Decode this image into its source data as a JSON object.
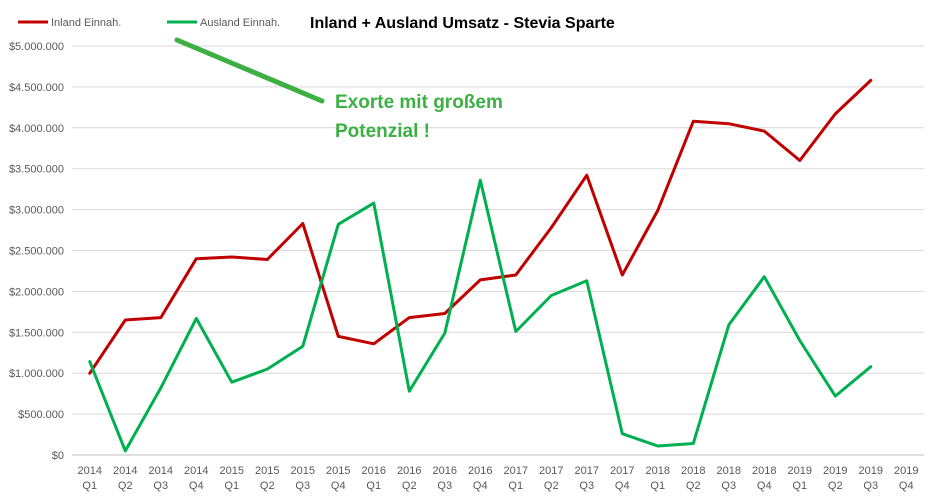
{
  "chart_data": {
    "type": "line",
    "title": "Inland + Ausland Umsatz - Stevia Sparte",
    "xlabel": "",
    "ylabel": "",
    "ylim": [
      0,
      5000000
    ],
    "y_ticks": [
      {
        "value": 0,
        "label": "$0"
      },
      {
        "value": 500000,
        "label": "$500.000"
      },
      {
        "value": 1000000,
        "label": "$1.000.000"
      },
      {
        "value": 1500000,
        "label": "$1.500.000"
      },
      {
        "value": 2000000,
        "label": "$2.000.000"
      },
      {
        "value": 2500000,
        "label": "$2.500.000"
      },
      {
        "value": 3000000,
        "label": "$3.000.000"
      },
      {
        "value": 3500000,
        "label": "$3.500.000"
      },
      {
        "value": 4000000,
        "label": "$4.000.000"
      },
      {
        "value": 4500000,
        "label": "$4.500.000"
      },
      {
        "value": 5000000,
        "label": "$5.000.000"
      }
    ],
    "categories": [
      [
        "2014",
        "Q1"
      ],
      [
        "2014",
        "Q2"
      ],
      [
        "2014",
        "Q3"
      ],
      [
        "2014",
        "Q4"
      ],
      [
        "2015",
        "Q1"
      ],
      [
        "2015",
        "Q2"
      ],
      [
        "2015",
        "Q3"
      ],
      [
        "2015",
        "Q4"
      ],
      [
        "2016",
        "Q1"
      ],
      [
        "2016",
        "Q2"
      ],
      [
        "2016",
        "Q3"
      ],
      [
        "2016",
        "Q4"
      ],
      [
        "2017",
        "Q1"
      ],
      [
        "2017",
        "Q2"
      ],
      [
        "2017",
        "Q3"
      ],
      [
        "2017",
        "Q4"
      ],
      [
        "2018",
        "Q1"
      ],
      [
        "2018",
        "Q2"
      ],
      [
        "2018",
        "Q3"
      ],
      [
        "2018",
        "Q4"
      ],
      [
        "2019",
        "Q1"
      ],
      [
        "2019",
        "Q2"
      ],
      [
        "2019",
        "Q3"
      ],
      [
        "2019",
        "Q4"
      ]
    ],
    "legend_position": "top-left",
    "grid": true,
    "series": [
      {
        "name": "Inland Einnah.",
        "color": "#C00000",
        "values": [
          1000000,
          1650000,
          1680000,
          2400000,
          2420000,
          2390000,
          2830000,
          1450000,
          1360000,
          1680000,
          1730000,
          2140000,
          2200000,
          2780000,
          3420000,
          2200000,
          2990000,
          4080000,
          4050000,
          3960000,
          3600000,
          4170000,
          4580000,
          null
        ]
      },
      {
        "name": "Ausland Einnah.",
        "color": "#00B050",
        "values": [
          1140000,
          50000,
          820000,
          1670000,
          890000,
          1050000,
          1330000,
          2820000,
          3080000,
          780000,
          1490000,
          3360000,
          1510000,
          1950000,
          2130000,
          260000,
          110000,
          140000,
          1590000,
          2180000,
          1400000,
          720000,
          1080000,
          null
        ]
      }
    ],
    "annotation": {
      "lines": [
        "Exorte mit großem",
        "Potenzial !"
      ],
      "color": "#3CB043"
    }
  }
}
